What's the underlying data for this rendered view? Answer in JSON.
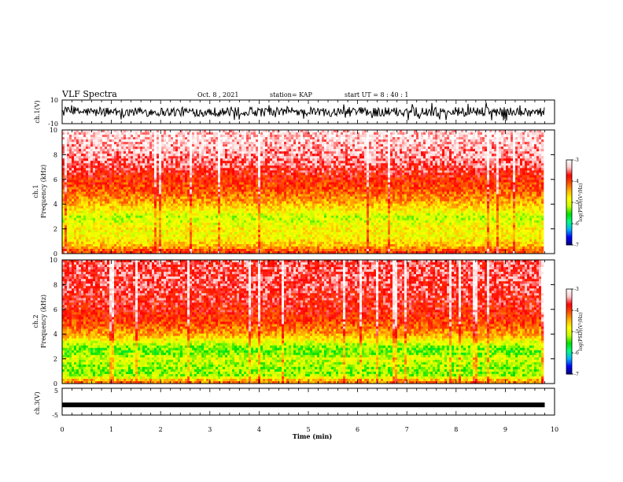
{
  "header": {
    "title": "VLF Spectra",
    "date": "Oct. 8 , 2021",
    "station": "station= KAP",
    "start_ut": "start UT =  8 : 40 : 1"
  },
  "chart_data": [
    {
      "type": "line",
      "panel": "ch1-waveform",
      "ylabel": "ch.1(V)",
      "ylim": [
        -10,
        10
      ],
      "yticks": [
        -10,
        10
      ],
      "xlim": [
        0,
        10
      ],
      "description_values": "dense noise waveform, mostly between -4 and 4 V with spikes reaching about ±8 V, data ending near 9.8 min"
    },
    {
      "type": "heatmap",
      "panel": "ch1-spectrogram",
      "ylabel": "ch.1\nFrequency (kHz)",
      "ylabel_line1": "ch.1",
      "ylabel_line2": "Frequency (kHz)",
      "ylim": [
        0,
        10
      ],
      "yticks": [
        0,
        2,
        4,
        6,
        8,
        10
      ],
      "xlim": [
        0,
        10
      ],
      "colorbar": {
        "label": "log(PSD)(V²/Hz)",
        "range": [
          -7,
          -3
        ],
        "ticks": [
          -3,
          -4,
          -5,
          -6,
          -7
        ],
        "colormap": [
          "#000080",
          "#0000ff",
          "#00b4ff",
          "#00ff80",
          "#00e000",
          "#c8ff00",
          "#ffff00",
          "#ffb400",
          "#ff5000",
          "#ff0000",
          "#ffc8c8",
          "#ffffff"
        ]
      },
      "bands_kHz_logPSD": [
        [
          0.2,
          -4.0
        ],
        [
          0.6,
          -4.5
        ],
        [
          1.0,
          -4.7
        ],
        [
          1.5,
          -4.9
        ],
        [
          2.0,
          -4.8
        ],
        [
          2.5,
          -5.0
        ],
        [
          3.0,
          -5.1
        ],
        [
          3.5,
          -4.8
        ],
        [
          4.0,
          -4.5
        ],
        [
          4.5,
          -4.3
        ],
        [
          5.0,
          -4.1
        ],
        [
          6.0,
          -3.9
        ],
        [
          7.0,
          -3.6
        ],
        [
          8.0,
          -3.4
        ],
        [
          9.0,
          -3.3
        ],
        [
          10.0,
          -3.2
        ]
      ]
    },
    {
      "type": "heatmap",
      "panel": "ch2-spectrogram",
      "ylabel": "ch.2\nFrequency (kHz)",
      "ylabel_line1": "ch.2",
      "ylabel_line2": "Frequency (kHz)",
      "ylim": [
        0,
        10
      ],
      "yticks": [
        0,
        2,
        4,
        6,
        8,
        10
      ],
      "xlim": [
        0,
        10
      ],
      "colorbar": {
        "label": "log(PSD)(V²/Hz)",
        "range": [
          -7,
          -3
        ],
        "ticks": [
          -3,
          -4,
          -5,
          -6,
          -7
        ],
        "colormap": [
          "#000080",
          "#0000ff",
          "#00b4ff",
          "#00ff80",
          "#00e000",
          "#c8ff00",
          "#ffff00",
          "#ffb400",
          "#ff5000",
          "#ff0000",
          "#ffc8c8",
          "#ffffff"
        ]
      },
      "bands_kHz_logPSD": [
        [
          0.2,
          -4.3
        ],
        [
          0.6,
          -5.2
        ],
        [
          1.0,
          -5.3
        ],
        [
          1.5,
          -5.2
        ],
        [
          2.0,
          -5.0
        ],
        [
          2.5,
          -5.4
        ],
        [
          3.0,
          -5.3
        ],
        [
          3.5,
          -4.8
        ],
        [
          4.0,
          -4.4
        ],
        [
          4.5,
          -4.2
        ],
        [
          5.0,
          -4.0
        ],
        [
          6.0,
          -3.8
        ],
        [
          7.0,
          -3.7
        ],
        [
          8.0,
          -3.6
        ],
        [
          9.0,
          -3.6
        ],
        [
          10.0,
          -3.6
        ]
      ]
    },
    {
      "type": "line",
      "panel": "ch3-waveform",
      "ylabel": "ch.3(V)",
      "ylim": [
        -5,
        5
      ],
      "yticks": [
        -5,
        5
      ],
      "xlim": [
        0,
        10
      ],
      "description_values": "nearly constant thick trace centred at about -1.2 V, data ending near 9.8 min"
    }
  ],
  "x_axis": {
    "label": "Time (min)",
    "ticks": [
      0,
      1,
      2,
      3,
      4,
      5,
      6,
      7,
      8,
      9,
      10
    ],
    "range": [
      0,
      10
    ],
    "data_end": 9.8
  }
}
